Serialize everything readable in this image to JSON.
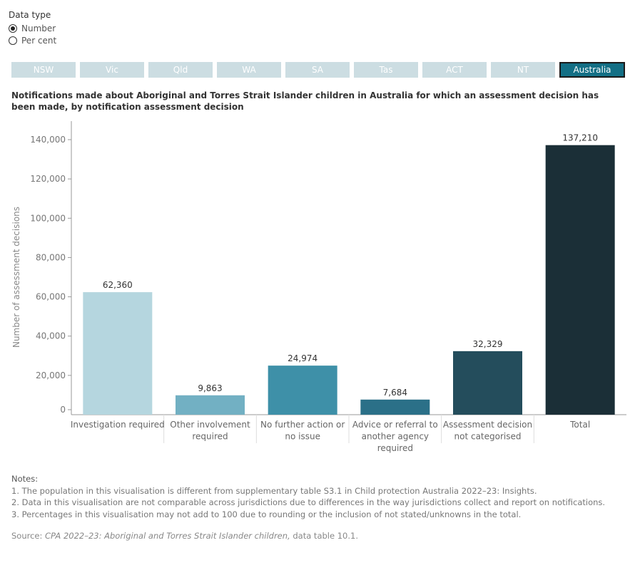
{
  "controls": {
    "data_type_label": "Data type",
    "options": [
      "Number",
      "Per cent"
    ],
    "selected": "Number"
  },
  "tabs": [
    "NSW",
    "Vic",
    "Qld",
    "WA",
    "SA",
    "Tas",
    "ACT",
    "NT",
    "Australia"
  ],
  "active_tab": "Australia",
  "colors": {
    "tab_inactive": "#ccdde2",
    "tab_active": "#136f85",
    "bars": [
      "#b5d6df",
      "#72b0c3",
      "#3e90a8",
      "#2b7088",
      "#244d5c",
      "#1b2f37"
    ]
  },
  "chart_data": {
    "type": "bar",
    "title": "Notifications made about Aboriginal and Torres Strait Islander children in Australia for which an assessment decision has been made, by notification assessment decision",
    "categories": [
      [
        "Investigation required"
      ],
      [
        "Other involvement",
        "required"
      ],
      [
        "No further action or",
        "no issue"
      ],
      [
        "Advice or referral to",
        "another agency",
        "required"
      ],
      [
        "Assessment decision",
        "not categorised"
      ],
      [
        "Total"
      ]
    ],
    "values": [
      62360,
      9863,
      24974,
      7684,
      32329,
      137210
    ],
    "value_labels": [
      "62,360",
      "9,863",
      "24,974",
      "7,684",
      "32,329",
      "137,210"
    ],
    "ylabel": "Number of assessment decisions",
    "xlabel": "",
    "ylim": [
      0,
      140000
    ],
    "yticks": [
      0,
      20000,
      40000,
      60000,
      80000,
      100000,
      120000,
      140000
    ],
    "ytick_labels": [
      "0",
      "20,000",
      "40,000",
      "60,000",
      "80,000",
      "100,000",
      "120,000",
      "140,000"
    ],
    "grid": false
  },
  "notes": {
    "heading": "Notes:",
    "items": [
      "1. The population in this visualisation is different from supplementary table S3.1 in Child protection Australia 2022–23: Insights.",
      "2. Data in this visualisation are not comparable across jurisdictions due to differences in the way jurisdictions collect and report on notifications.",
      "3. Percentages in this visualisation may not add to 100 due to rounding or the inclusion of not stated/unknowns in the total."
    ]
  },
  "source": {
    "prefix": "Source:",
    "italic": "CPA 2022–23: Aboriginal and Torres Strait Islander children,",
    "suffix": "data table 10.1."
  }
}
